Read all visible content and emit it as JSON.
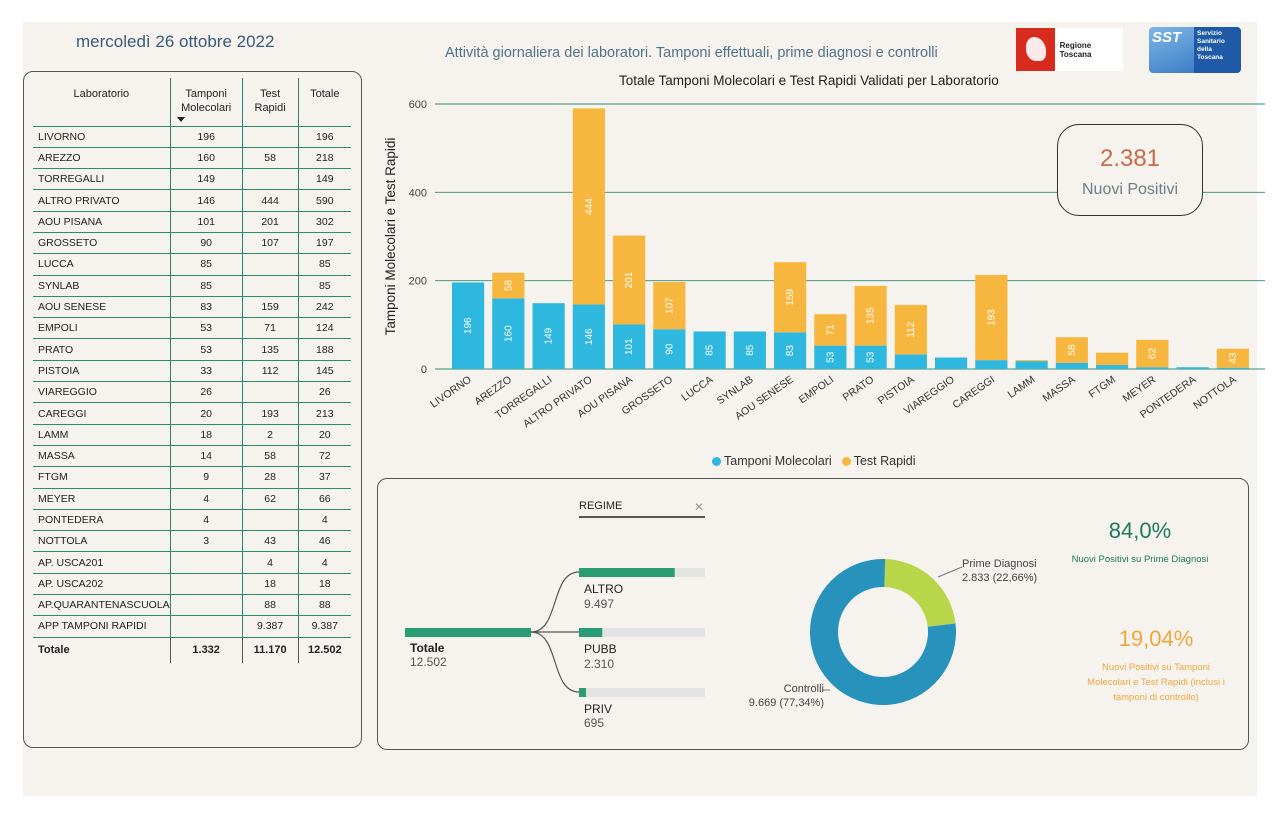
{
  "header": {
    "date": "mercoledì 26 ottobre 2022",
    "subtitle": "Attività giornaliera dei laboratori. Tamponi effettuali, prime diagnosi e controlli",
    "logo_rt_name": "Regione Toscana",
    "logo_sst_mark": "SST",
    "logo_sst_text": [
      "Servizio",
      "Sanitario",
      "della",
      "Toscana"
    ]
  },
  "table": {
    "headers": [
      "Laboratorio",
      "Tamponi Molecolari",
      "Test Rapidi",
      "Totale"
    ],
    "rows": [
      [
        "LIVORNO",
        "196",
        "",
        "196"
      ],
      [
        "AREZZO",
        "160",
        "58",
        "218"
      ],
      [
        "TORREGALLI",
        "149",
        "",
        "149"
      ],
      [
        "ALTRO PRIVATO",
        "146",
        "444",
        "590"
      ],
      [
        "AOU PISANA",
        "101",
        "201",
        "302"
      ],
      [
        "GROSSETO",
        "90",
        "107",
        "197"
      ],
      [
        "LUCCA",
        "85",
        "",
        "85"
      ],
      [
        "SYNLAB",
        "85",
        "",
        "85"
      ],
      [
        "AOU SENESE",
        "83",
        "159",
        "242"
      ],
      [
        "EMPOLI",
        "53",
        "71",
        "124"
      ],
      [
        "PRATO",
        "53",
        "135",
        "188"
      ],
      [
        "PISTOIA",
        "33",
        "112",
        "145"
      ],
      [
        "VIAREGGIO",
        "26",
        "",
        "26"
      ],
      [
        "CAREGGI",
        "20",
        "193",
        "213"
      ],
      [
        "LAMM",
        "18",
        "2",
        "20"
      ],
      [
        "MASSA",
        "14",
        "58",
        "72"
      ],
      [
        "FTGM",
        "9",
        "28",
        "37"
      ],
      [
        "MEYER",
        "4",
        "62",
        "66"
      ],
      [
        "PONTEDERA",
        "4",
        "",
        "4"
      ],
      [
        "NOTTOLA",
        "3",
        "43",
        "46"
      ],
      [
        "AP. USCA201",
        "",
        "4",
        "4"
      ],
      [
        "AP. USCA202",
        "",
        "18",
        "18"
      ],
      [
        "AP.QUARANTENASCUOLA",
        "",
        "88",
        "88"
      ],
      [
        "APP TAMPONI RAPIDI",
        "",
        "9.387",
        "9.387"
      ]
    ],
    "total": [
      "Totale",
      "1.332",
      "11.170",
      "12.502"
    ]
  },
  "chart_data": {
    "type": "bar",
    "stacked": true,
    "title": "Totale Tamponi Molecolari e Test Rapidi Validati per Laboratorio",
    "ylabel": "Tamponi Molecolari e Test Rapidi",
    "xlabel": "",
    "ylim": [
      0,
      600
    ],
    "yticks": [
      0,
      200,
      400,
      600
    ],
    "grid": true,
    "legend_position": "bottom",
    "categories": [
      "LIVORNO",
      "AREZZO",
      "TORREGALLI",
      "ALTRO PRIVATO",
      "AOU PISANA",
      "GROSSETO",
      "LUCCA",
      "SYNLAB",
      "AOU SENESE",
      "EMPOLI",
      "PRATO",
      "PISTOIA",
      "VIAREGGIO",
      "CAREGGI",
      "LAMM",
      "MASSA",
      "FTGM",
      "MEYER",
      "PONTEDERA",
      "NOTTOLA"
    ],
    "series": [
      {
        "name": "Tamponi Molecolari",
        "color": "#2eb8e0",
        "values": [
          196,
          160,
          149,
          146,
          101,
          90,
          85,
          85,
          83,
          53,
          53,
          33,
          26,
          20,
          18,
          14,
          9,
          4,
          4,
          3
        ]
      },
      {
        "name": "Test Rapidi",
        "color": "#f7b73f",
        "values": [
          0,
          58,
          0,
          444,
          201,
          107,
          0,
          0,
          159,
          71,
          135,
          112,
          0,
          193,
          2,
          58,
          28,
          62,
          0,
          43
        ]
      }
    ]
  },
  "card": {
    "value": "2.381",
    "label": "Nuovi Positivi"
  },
  "decomposition": {
    "filter_label": "REGIME",
    "filter_close": "✕",
    "root": {
      "label": "Totale",
      "value": "12.502",
      "amount": 12502
    },
    "children": [
      {
        "label": "ALTRO",
        "value": "9.497",
        "amount": 9497
      },
      {
        "label": "PUBB",
        "value": "2.310",
        "amount": 2310
      },
      {
        "label": "PRIV",
        "value": "695",
        "amount": 695
      }
    ],
    "bar_color": "#2a9d74",
    "track_color": "#e3e3e3"
  },
  "donut": {
    "slices": [
      {
        "name": "Prime Diagnosi",
        "label": "2.833 (22,66%)",
        "value": 2833,
        "color": "#b9d54a"
      },
      {
        "name": "Controlli",
        "label": "9.669 (77,34%)",
        "value": 9669,
        "color": "#2793bd"
      }
    ]
  },
  "kpis": [
    {
      "value": "84,0%",
      "desc": "Nuovi Positivi su Prime Diagnosi",
      "color": "#1d7a5e"
    },
    {
      "value": "19,04%",
      "desc": "Nuovi Positivi su Tamponi Molecolari e Test Rapidi (inclusi i tamponi di controllo)",
      "color": "#f0a53c"
    }
  ]
}
